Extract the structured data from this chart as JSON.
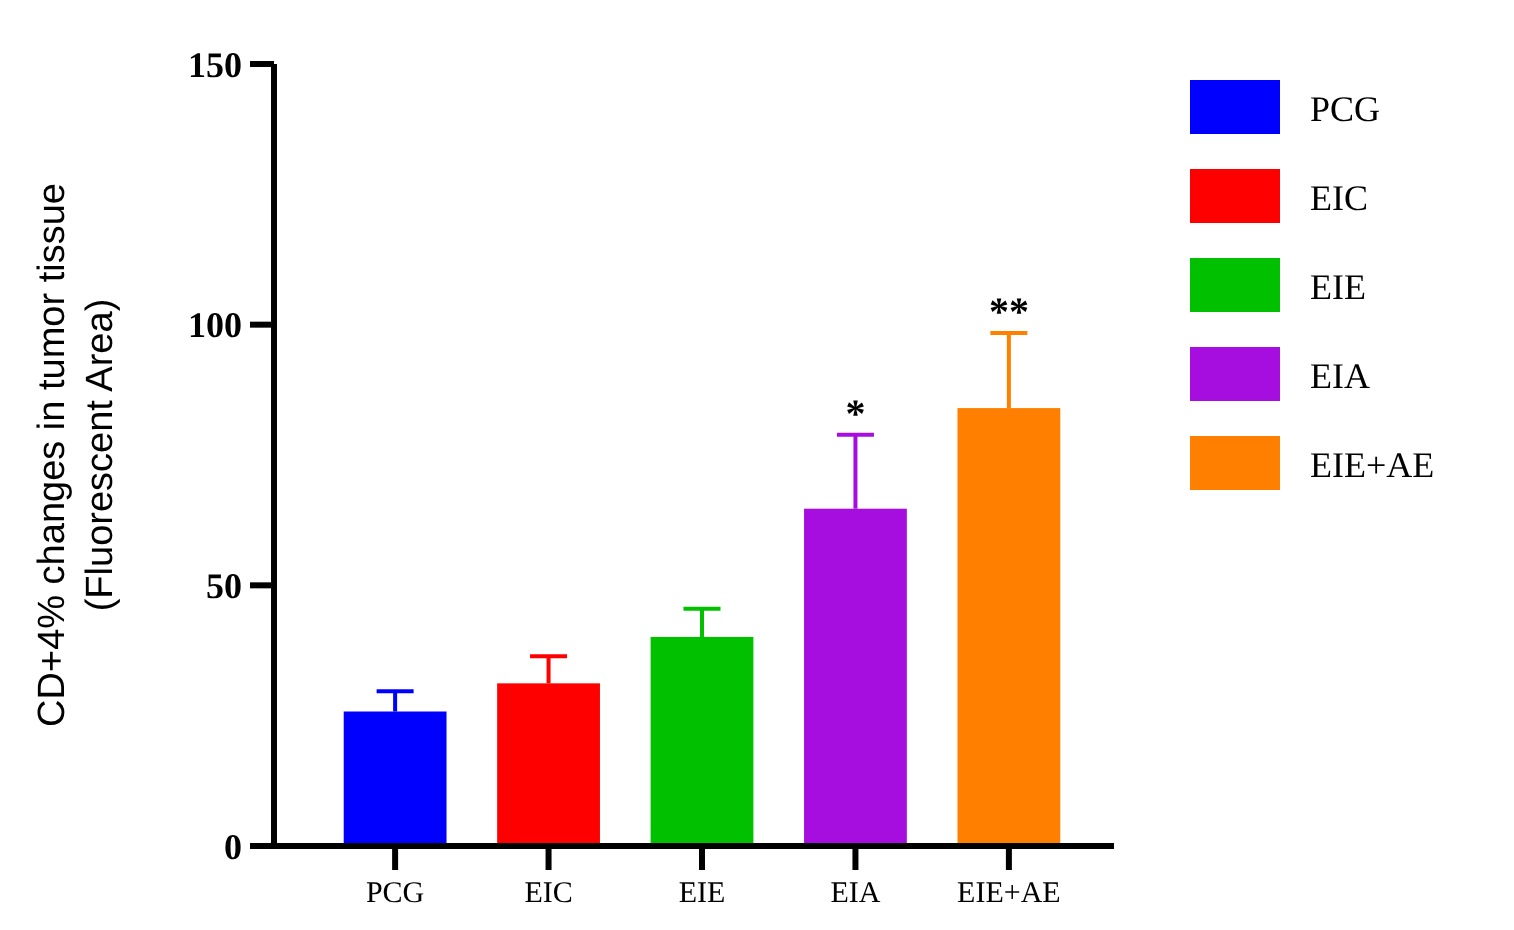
{
  "chart_data": {
    "type": "bar",
    "ylabel": "CD+4% changes in tumor tissue\n(Fluorescent Area)",
    "categories": [
      "PCG",
      "EIC",
      "EIE",
      "EIA",
      "EIE+AE"
    ],
    "series": [
      {
        "name": "PCG",
        "color": "#0000ff",
        "values": [
          25.8,
          null,
          null,
          null,
          null
        ],
        "errors": [
          3.9,
          null,
          null,
          null,
          null
        ]
      },
      {
        "name": "EIC",
        "color": "#ff0000",
        "values": [
          null,
          31.2,
          null,
          null,
          null
        ],
        "errors": [
          null,
          5.2,
          null,
          null,
          null
        ]
      },
      {
        "name": "EIE",
        "color": "#00c000",
        "values": [
          null,
          null,
          40.1,
          null,
          null
        ],
        "errors": [
          null,
          null,
          5.4,
          null,
          null
        ]
      },
      {
        "name": "EIA",
        "color": "#a60ee0",
        "values": [
          null,
          null,
          null,
          64.7,
          null
        ],
        "errors": [
          null,
          null,
          null,
          14.2,
          null
        ]
      },
      {
        "name": "EIE+AE",
        "color": "#ff8000",
        "values": [
          null,
          null,
          null,
          null,
          84.0
        ],
        "errors": [
          null,
          null,
          null,
          null,
          14.4
        ]
      }
    ],
    "ylim": [
      0,
      150
    ],
    "yticks": [
      0,
      50,
      100,
      150
    ],
    "legend": "right",
    "annotations": [
      {
        "text": "*",
        "x": "EIA",
        "y": 78.9
      },
      {
        "text": "**",
        "x": "EIE+AE",
        "y": 98.4
      }
    ]
  }
}
